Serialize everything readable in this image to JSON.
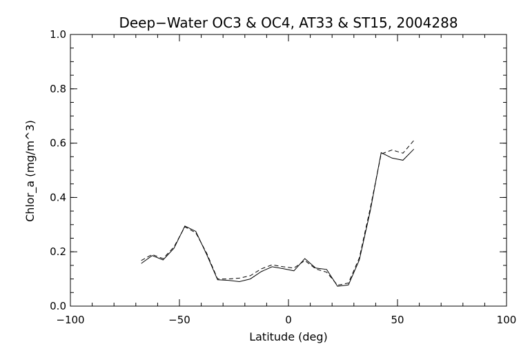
{
  "chart_data": {
    "type": "line",
    "title": "Deep−Water OC3 & OC4, AT33 & ST15, 2004288",
    "xlabel": "Latitude (deg)",
    "ylabel": "Chlor_a (mg/m^3)",
    "xlim": [
      -100,
      100
    ],
    "ylim": [
      0.0,
      1.0
    ],
    "xticks": [
      -100,
      -50,
      0,
      50,
      100
    ],
    "xtick_labels": [
      "−100",
      "−50",
      "0",
      "50",
      "100"
    ],
    "yticks": [
      0.0,
      0.2,
      0.4,
      0.6,
      0.8,
      1.0
    ],
    "ytick_labels": [
      "0.0",
      "0.2",
      "0.4",
      "0.6",
      "0.8",
      "1.0"
    ],
    "x_minor_step": 10,
    "y_minor_step": 0.05,
    "grid": false,
    "series": [
      {
        "style": "solid",
        "x": [
          -67.5,
          -62.5,
          -57.5,
          -52.5,
          -47.5,
          -42.5,
          -37.5,
          -32.5,
          -27.5,
          -22.5,
          -17.5,
          -12.5,
          -7.5,
          -2.5,
          2.5,
          7.5,
          12.5,
          17.5,
          22.5,
          27.5,
          32.5,
          37.5,
          42.5,
          47.5,
          52.5,
          57.5
        ],
        "values": [
          0.157,
          0.186,
          0.17,
          0.213,
          0.295,
          0.275,
          0.19,
          0.097,
          0.095,
          0.09,
          0.1,
          0.127,
          0.145,
          0.138,
          0.13,
          0.175,
          0.14,
          0.135,
          0.073,
          0.078,
          0.17,
          0.35,
          0.565,
          0.545,
          0.537,
          0.578
        ]
      },
      {
        "style": "dashed",
        "x": [
          -67.5,
          -62.5,
          -57.5,
          -52.5,
          -47.5,
          -42.5,
          -37.5,
          -32.5,
          -27.5,
          -22.5,
          -17.5,
          -12.5,
          -7.5,
          -2.5,
          2.5,
          7.5,
          12.5,
          17.5,
          22.5,
          27.5,
          32.5,
          37.5,
          42.5,
          47.5,
          52.5,
          57.5
        ],
        "values": [
          0.168,
          0.19,
          0.175,
          0.218,
          0.292,
          0.27,
          0.195,
          0.1,
          0.1,
          0.103,
          0.112,
          0.137,
          0.152,
          0.145,
          0.14,
          0.168,
          0.137,
          0.125,
          0.077,
          0.085,
          0.178,
          0.36,
          0.56,
          0.575,
          0.563,
          0.61
        ]
      }
    ]
  }
}
